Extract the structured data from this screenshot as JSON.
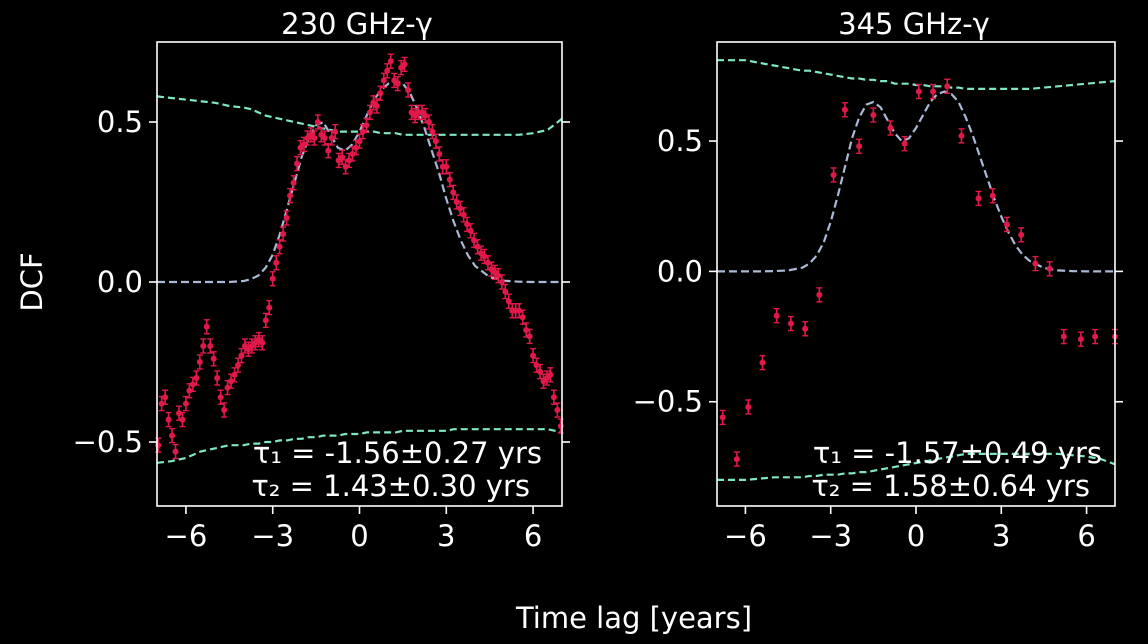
{
  "figure": {
    "ylabel": "DCF",
    "xlabel": "Time lag [years]"
  },
  "chart_data": [
    {
      "type": "scatter",
      "title": "230 GHz-γ",
      "xlim": [
        -7,
        7
      ],
      "ylim": [
        -0.7,
        0.75
      ],
      "xticks": [
        -6,
        -3,
        0,
        3,
        6
      ],
      "xtick_labels": [
        "−6",
        "−3",
        "0",
        "3",
        "6"
      ],
      "yticks": [
        -0.5,
        0.0,
        0.5
      ],
      "ytick_labels": [
        "−0.5",
        "0.0",
        "0.5"
      ],
      "annotations": [
        "τ₁ = -1.56±0.27 yrs",
        "τ₂ = 1.43±0.30 yrs"
      ],
      "colors": {
        "points": "#e0194a",
        "fit": "#a9b9d6",
        "significance": "#7ee8c4",
        "axes": "#ffffff"
      },
      "points_x": [
        -6.96,
        -6.84,
        -6.72,
        -6.6,
        -6.48,
        -6.36,
        -6.24,
        -6.12,
        -6.0,
        -5.88,
        -5.76,
        -5.64,
        -5.52,
        -5.4,
        -5.28,
        -5.16,
        -5.04,
        -4.92,
        -4.8,
        -4.68,
        -4.56,
        -4.44,
        -4.32,
        -4.2,
        -4.08,
        -3.96,
        -3.84,
        -3.72,
        -3.6,
        -3.48,
        -3.36,
        -3.24,
        -3.12,
        -3.0,
        -2.88,
        -2.76,
        -2.64,
        -2.52,
        -2.4,
        -2.28,
        -2.16,
        -2.04,
        -1.92,
        -1.8,
        -1.68,
        -1.56,
        -1.44,
        -1.32,
        -1.2,
        -1.08,
        -0.96,
        -0.84,
        -0.72,
        -0.6,
        -0.48,
        -0.36,
        -0.24,
        -0.12,
        0.0,
        0.12,
        0.24,
        0.36,
        0.48,
        0.6,
        0.72,
        0.84,
        0.96,
        1.08,
        1.2,
        1.32,
        1.44,
        1.56,
        1.68,
        1.8,
        1.92,
        2.04,
        2.16,
        2.28,
        2.4,
        2.52,
        2.64,
        2.76,
        2.88,
        3.0,
        3.12,
        3.24,
        3.36,
        3.48,
        3.6,
        3.72,
        3.84,
        3.96,
        4.08,
        4.2,
        4.32,
        4.44,
        4.56,
        4.68,
        4.8,
        4.92,
        5.04,
        5.16,
        5.28,
        5.4,
        5.52,
        5.64,
        5.76,
        5.88,
        6.0,
        6.12,
        6.24,
        6.36,
        6.48,
        6.6,
        6.72,
        6.84,
        6.96
      ],
      "points_y": [
        -0.51,
        -0.38,
        -0.36,
        -0.43,
        -0.48,
        -0.53,
        -0.41,
        -0.43,
        -0.38,
        -0.34,
        -0.32,
        -0.3,
        -0.25,
        -0.2,
        -0.14,
        -0.2,
        -0.24,
        -0.3,
        -0.36,
        -0.4,
        -0.33,
        -0.31,
        -0.29,
        -0.26,
        -0.23,
        -0.2,
        -0.21,
        -0.2,
        -0.19,
        -0.18,
        -0.19,
        -0.12,
        -0.08,
        0.01,
        0.06,
        0.11,
        0.15,
        0.2,
        0.27,
        0.31,
        0.37,
        0.42,
        0.43,
        0.45,
        0.46,
        0.45,
        0.5,
        0.46,
        0.45,
        0.41,
        0.45,
        0.47,
        0.38,
        0.39,
        0.36,
        0.38,
        0.4,
        0.42,
        0.44,
        0.47,
        0.49,
        0.53,
        0.56,
        0.55,
        0.59,
        0.63,
        0.66,
        0.69,
        0.63,
        0.62,
        0.67,
        0.68,
        0.6,
        0.53,
        0.52,
        0.53,
        0.53,
        0.52,
        0.5,
        0.47,
        0.44,
        0.4,
        0.36,
        0.36,
        0.32,
        0.28,
        0.25,
        0.23,
        0.21,
        0.18,
        0.16,
        0.13,
        0.11,
        0.09,
        0.08,
        0.06,
        0.04,
        0.03,
        0.02,
        0.0,
        -0.03,
        -0.06,
        -0.09,
        -0.09,
        -0.09,
        -0.11,
        -0.15,
        -0.17,
        -0.23,
        -0.26,
        -0.28,
        -0.31,
        -0.3,
        -0.29,
        -0.36,
        -0.4,
        -0.45
      ],
      "fit_x": [
        -7.0,
        -6.5,
        -6.0,
        -5.5,
        -5.0,
        -4.5,
        -4.0,
        -3.75,
        -3.5,
        -3.25,
        -3.0,
        -2.75,
        -2.5,
        -2.25,
        -2.0,
        -1.75,
        -1.5,
        -1.25,
        -1.0,
        -0.75,
        -0.5,
        -0.25,
        0.0,
        0.25,
        0.5,
        0.75,
        1.0,
        1.25,
        1.5,
        1.75,
        2.0,
        2.25,
        2.5,
        2.75,
        3.0,
        3.25,
        3.5,
        3.75,
        4.0,
        4.5,
        5.0,
        5.5,
        6.0,
        6.5,
        7.0
      ],
      "fit_y": [
        0.0,
        0.0,
        0.0,
        0.0,
        0.0,
        0.0,
        0.003,
        0.009,
        0.02,
        0.044,
        0.085,
        0.15,
        0.23,
        0.31,
        0.39,
        0.45,
        0.49,
        0.5,
        0.46,
        0.42,
        0.41,
        0.43,
        0.47,
        0.52,
        0.57,
        0.6,
        0.62,
        0.63,
        0.62,
        0.59,
        0.54,
        0.48,
        0.41,
        0.34,
        0.26,
        0.19,
        0.13,
        0.083,
        0.05,
        0.015,
        0.004,
        0.001,
        0.0,
        0.0,
        0.0
      ],
      "sig_upper_y": [
        0.58,
        0.575,
        0.57,
        0.565,
        0.56,
        0.55,
        0.545,
        0.54,
        0.53,
        0.52,
        0.515,
        0.51,
        0.505,
        0.5,
        0.495,
        0.49,
        0.485,
        0.48,
        0.475,
        0.47,
        0.47,
        0.47,
        0.47,
        0.47,
        0.47,
        0.465,
        0.465,
        0.465,
        0.46,
        0.46,
        0.46,
        0.46,
        0.46,
        0.46,
        0.46,
        0.46,
        0.46,
        0.46,
        0.46,
        0.46,
        0.46,
        0.46,
        0.465,
        0.475,
        0.51
      ],
      "sig_lower_y": [
        -0.565,
        -0.56,
        -0.55,
        -0.53,
        -0.52,
        -0.51,
        -0.51,
        -0.505,
        -0.505,
        -0.5,
        -0.5,
        -0.495,
        -0.495,
        -0.49,
        -0.49,
        -0.485,
        -0.485,
        -0.48,
        -0.48,
        -0.48,
        -0.475,
        -0.475,
        -0.475,
        -0.47,
        -0.47,
        -0.47,
        -0.47,
        -0.47,
        -0.465,
        -0.465,
        -0.465,
        -0.465,
        -0.465,
        -0.465,
        -0.465,
        -0.46,
        -0.46,
        -0.46,
        -0.46,
        -0.46,
        -0.46,
        -0.46,
        -0.46,
        -0.46,
        -0.47
      ]
    },
    {
      "type": "scatter",
      "title": "345 GHz-γ",
      "xlim": [
        -7,
        7
      ],
      "ylim": [
        -0.9,
        0.88
      ],
      "xticks": [
        -6,
        -3,
        0,
        3,
        6
      ],
      "xtick_labels": [
        "−6",
        "−3",
        "0",
        "3",
        "6"
      ],
      "yticks": [
        -0.5,
        0.0,
        0.5
      ],
      "ytick_labels": [
        "−0.5",
        "0.0",
        "0.5"
      ],
      "annotations": [
        "τ₁ = -1.57±0.49 yrs",
        "τ₂ = 1.58±0.64 yrs"
      ],
      "colors": {
        "points": "#e0194a",
        "fit": "#a9b9d6",
        "significance": "#7ee8c4",
        "axes": "#ffffff"
      },
      "points_x": [
        -6.8,
        -6.3,
        -5.9,
        -5.4,
        -4.9,
        -4.4,
        -3.9,
        -3.4,
        -2.9,
        -2.5,
        -2.0,
        -1.5,
        -0.9,
        -0.4,
        0.1,
        0.6,
        1.1,
        1.6,
        2.2,
        2.7,
        3.2,
        3.7,
        4.2,
        4.7,
        5.2,
        5.8,
        6.3,
        7.0
      ],
      "points_y": [
        -0.56,
        -0.72,
        -0.52,
        -0.35,
        -0.17,
        -0.2,
        -0.22,
        -0.09,
        0.37,
        0.62,
        0.48,
        0.6,
        0.55,
        0.49,
        0.69,
        0.69,
        0.71,
        0.52,
        0.28,
        0.29,
        0.18,
        0.14,
        0.03,
        0.01,
        -0.25,
        -0.26,
        -0.25,
        -0.25
      ],
      "fit_x": [
        -7.0,
        -6.5,
        -6.0,
        -5.5,
        -5.0,
        -4.5,
        -4.0,
        -3.75,
        -3.5,
        -3.25,
        -3.0,
        -2.75,
        -2.5,
        -2.25,
        -2.0,
        -1.75,
        -1.5,
        -1.25,
        -1.0,
        -0.75,
        -0.5,
        -0.25,
        0.0,
        0.25,
        0.5,
        0.75,
        1.0,
        1.25,
        1.5,
        1.75,
        2.0,
        2.25,
        2.5,
        2.75,
        3.0,
        3.25,
        3.5,
        3.75,
        4.0,
        4.5,
        5.0,
        5.5,
        6.0,
        6.5,
        7.0
      ],
      "fit_y": [
        0.0,
        0.0,
        0.0,
        0.0,
        0.001,
        0.004,
        0.014,
        0.03,
        0.06,
        0.11,
        0.19,
        0.29,
        0.4,
        0.51,
        0.59,
        0.64,
        0.65,
        0.63,
        0.58,
        0.53,
        0.5,
        0.51,
        0.55,
        0.6,
        0.65,
        0.68,
        0.69,
        0.68,
        0.65,
        0.59,
        0.52,
        0.44,
        0.36,
        0.28,
        0.21,
        0.15,
        0.1,
        0.064,
        0.04,
        0.013,
        0.004,
        0.001,
        0.0,
        0.0,
        0.0
      ],
      "sig_upper_y": [
        0.81,
        0.81,
        0.81,
        0.8,
        0.79,
        0.78,
        0.77,
        0.77,
        0.765,
        0.76,
        0.755,
        0.75,
        0.745,
        0.74,
        0.74,
        0.735,
        0.735,
        0.73,
        0.73,
        0.72,
        0.72,
        0.72,
        0.715,
        0.715,
        0.71,
        0.71,
        0.71,
        0.705,
        0.705,
        0.7,
        0.7,
        0.7,
        0.7,
        0.7,
        0.7,
        0.7,
        0.7,
        0.7,
        0.7,
        0.705,
        0.71,
        0.715,
        0.72,
        0.725,
        0.73
      ],
      "sig_lower_y": [
        -0.8,
        -0.8,
        -0.8,
        -0.795,
        -0.79,
        -0.79,
        -0.79,
        -0.785,
        -0.785,
        -0.78,
        -0.78,
        -0.78,
        -0.775,
        -0.775,
        -0.77,
        -0.77,
        -0.765,
        -0.76,
        -0.755,
        -0.75,
        -0.745,
        -0.74,
        -0.735,
        -0.73,
        -0.725,
        -0.72,
        -0.715,
        -0.71,
        -0.705,
        -0.7,
        -0.7,
        -0.7,
        -0.7,
        -0.7,
        -0.7,
        -0.7,
        -0.7,
        -0.7,
        -0.7,
        -0.7,
        -0.7,
        -0.705,
        -0.71,
        -0.72,
        -0.74
      ]
    }
  ]
}
